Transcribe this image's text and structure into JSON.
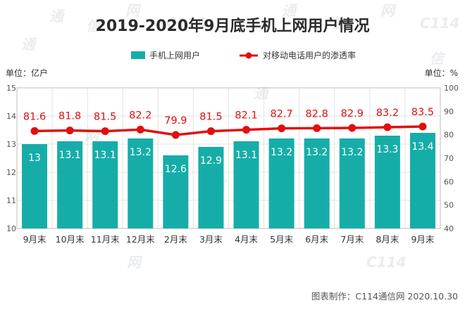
{
  "colors": {
    "bar": "#16ada8",
    "line": "#e20f0f",
    "grid": "#e3e3e3",
    "frame": "#bdbdbd",
    "title": "#2b2b2b"
  },
  "watermark": [
    "通",
    "信",
    "网",
    "C114"
  ],
  "footer": "图表制作：C114通信网  2020.10.30",
  "chart_data": {
    "type": "bar",
    "title": "2019-2020年9月底手机上网用户情况",
    "legend": {
      "position": "top-center"
    },
    "categories": [
      "9月末",
      "10月末",
      "11月末",
      "12月末",
      "2月末",
      "3月末",
      "4月末",
      "5月末",
      "6月末",
      "7月末",
      "8月末",
      "9月末"
    ],
    "series": [
      {
        "name": "手机上网用户",
        "kind": "bar",
        "axis": "left",
        "values": [
          13,
          13.1,
          13.1,
          13.2,
          12.6,
          12.9,
          13.1,
          13.2,
          13.2,
          13.2,
          13.3,
          13.4
        ],
        "labels": [
          "13",
          "13.1",
          "13.1",
          "13.2",
          "12.6",
          "12.9",
          "13.1",
          "13.2",
          "13.2",
          "13.2",
          "13.3",
          "13.4"
        ]
      },
      {
        "name": "对移动电话用户的渗透率",
        "kind": "line",
        "axis": "right",
        "values": [
          81.6,
          81.8,
          81.5,
          82.2,
          79.9,
          81.5,
          82.1,
          82.7,
          82.8,
          82.9,
          83.2,
          83.5
        ],
        "labels": [
          "81.6",
          "81.8",
          "81.5",
          "82.2",
          "79.9",
          "81.5",
          "82.1",
          "82.7",
          "82.8",
          "82.9",
          "83.2",
          "83.5"
        ]
      }
    ],
    "y_left": {
      "unit_label": "单位：亿户",
      "ylim": [
        10,
        15
      ],
      "ticks": [
        "10",
        "11",
        "12",
        "13",
        "14",
        "15"
      ]
    },
    "y_right": {
      "unit_label": "单位：%",
      "ylim": [
        40,
        100
      ],
      "ticks": [
        "40",
        "50",
        "60",
        "70",
        "80",
        "90",
        "100"
      ]
    },
    "grid": true
  }
}
